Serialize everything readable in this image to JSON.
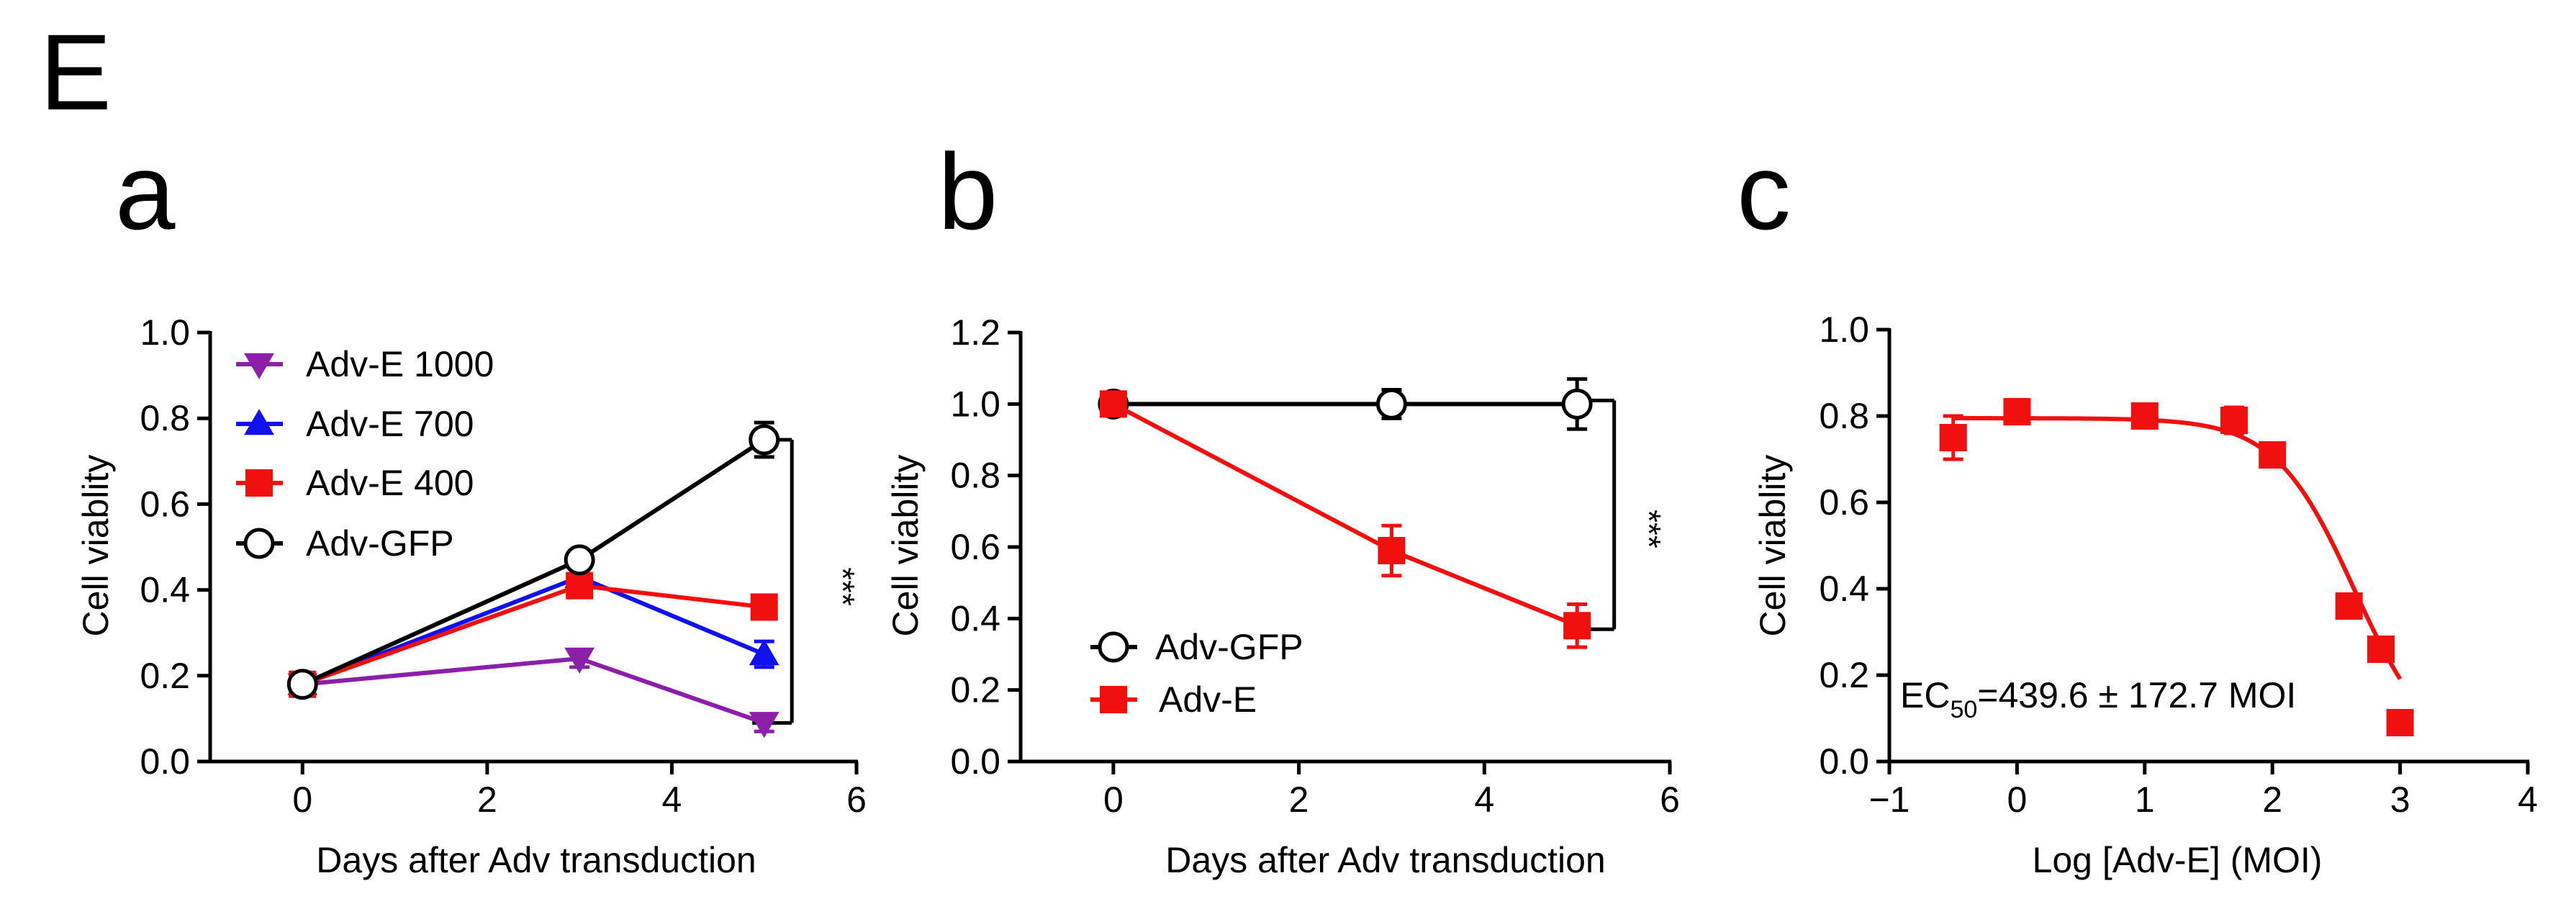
{
  "figure_label": "E",
  "colors": {
    "axis": "#000000",
    "black": "#000000",
    "purple": "#8B1FA8",
    "blue": "#1010F0",
    "red": "#F01010",
    "white": "#FFFFFF"
  },
  "chart_data": [
    {
      "panel": "a",
      "type": "line",
      "title": "",
      "xlabel": "Days after Adv transduction",
      "ylabel": "Cell viablity",
      "xlim": [
        -1,
        6
      ],
      "ylim": [
        0,
        1.0
      ],
      "xticks": [
        0,
        2,
        4,
        6
      ],
      "yticks": [
        0.0,
        0.2,
        0.4,
        0.6,
        0.8,
        1.0
      ],
      "xtick_labels": [
        "0",
        "2",
        "4",
        "6"
      ],
      "ytick_labels": [
        "0.0",
        "0.2",
        "0.4",
        "0.6",
        "0.8",
        "1.0"
      ],
      "legend_position": "top-left",
      "series": [
        {
          "name": "Adv-E 1000",
          "marker": "triangle-down",
          "color": "#8B1FA8",
          "fill": "#8B1FA8",
          "x": [
            0,
            3,
            5
          ],
          "y": [
            0.18,
            0.24,
            0.09
          ],
          "err": [
            0.02,
            0.02,
            0.02
          ]
        },
        {
          "name": "Adv-E 700",
          "marker": "triangle-up",
          "color": "#1010F0",
          "fill": "#1010F0",
          "x": [
            0,
            3,
            5
          ],
          "y": [
            0.18,
            0.43,
            0.25
          ],
          "err": [
            0.02,
            0.02,
            0.03
          ]
        },
        {
          "name": "Adv-E 400",
          "marker": "square",
          "color": "#F01010",
          "fill": "#F01010",
          "x": [
            0,
            3,
            5
          ],
          "y": [
            0.18,
            0.41,
            0.36
          ],
          "err": [
            0.02,
            0.02,
            0.02
          ]
        },
        {
          "name": "Adv-GFP",
          "marker": "circle-open",
          "color": "#000000",
          "fill": "#FFFFFF",
          "x": [
            0,
            3,
            5
          ],
          "y": [
            0.18,
            0.47,
            0.75
          ],
          "err": [
            0.02,
            0.02,
            0.04
          ]
        }
      ],
      "significance": {
        "label": "***",
        "x": 5.3,
        "y_from": 0.75,
        "y_to": 0.09
      }
    },
    {
      "panel": "b",
      "type": "line",
      "title": "",
      "xlabel": "Days after Adv transduction",
      "ylabel": "Cell viablity",
      "xlim": [
        -1,
        6
      ],
      "ylim": [
        0,
        1.2
      ],
      "xticks": [
        0,
        2,
        4,
        6
      ],
      "yticks": [
        0.0,
        0.2,
        0.4,
        0.6,
        0.8,
        1.0,
        1.2
      ],
      "xtick_labels": [
        "0",
        "2",
        "4",
        "6"
      ],
      "ytick_labels": [
        "0.0",
        "0.2",
        "0.4",
        "0.6",
        "0.8",
        "1.0",
        "1.2"
      ],
      "legend_position": "bottom-left",
      "series": [
        {
          "name": "Adv-GFP",
          "marker": "circle-open",
          "color": "#000000",
          "fill": "#FFFFFF",
          "x": [
            0,
            3,
            5
          ],
          "y": [
            1.0,
            1.0,
            1.0
          ],
          "err": [
            0.02,
            0.04,
            0.07
          ]
        },
        {
          "name": "Adv-E",
          "marker": "square",
          "color": "#F01010",
          "fill": "#F01010",
          "x": [
            0,
            3,
            5
          ],
          "y": [
            1.0,
            0.59,
            0.38
          ],
          "err": [
            0.03,
            0.07,
            0.06
          ]
        }
      ],
      "significance": {
        "label": "***",
        "x": 5.4,
        "y_from": 1.01,
        "y_to": 0.37
      }
    },
    {
      "panel": "c",
      "type": "scatter",
      "title": "",
      "xlabel": "Log [Adv-E] (MOI)",
      "ylabel": "Cell viablity",
      "xlim": [
        -1,
        4
      ],
      "ylim": [
        0,
        1.0
      ],
      "xticks": [
        -1,
        0,
        1,
        2,
        3,
        4
      ],
      "yticks": [
        0.0,
        0.2,
        0.4,
        0.6,
        0.8,
        1.0
      ],
      "xtick_labels": [
        "−1",
        "0",
        "1",
        "2",
        "3",
        "4"
      ],
      "ytick_labels": [
        "0.0",
        "0.2",
        "0.4",
        "0.6",
        "0.8",
        "1.0"
      ],
      "series": [
        {
          "name": "Adv-E",
          "marker": "square",
          "color": "#F01010",
          "fill": "#F01010",
          "x": [
            -0.5,
            0.0,
            1.0,
            1.7,
            2.0,
            2.6,
            2.85,
            3.0
          ],
          "y": [
            0.75,
            0.81,
            0.8,
            0.79,
            0.71,
            0.36,
            0.26,
            0.09
          ],
          "err": [
            0.05,
            0.02,
            0.02,
            0.03,
            0.02,
            0.02,
            0.02,
            0.02
          ]
        }
      ],
      "fit": {
        "type": "sigmoid",
        "top": 0.795,
        "bottom": 0.0,
        "log_ec50": 2.643,
        "hill": -1.4,
        "x_from": -0.5,
        "x_to": 3.0,
        "color": "#F01010"
      },
      "annotation": {
        "prefix": "EC",
        "subscript": "50",
        "text": "=439.6 ± 172.7 MOI"
      }
    }
  ]
}
